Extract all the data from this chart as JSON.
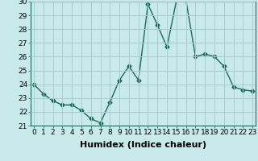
{
  "x": [
    0,
    1,
    2,
    3,
    4,
    5,
    6,
    7,
    8,
    9,
    10,
    11,
    12,
    13,
    14,
    15,
    16,
    17,
    18,
    19,
    20,
    21,
    22,
    23
  ],
  "y": [
    24,
    23.3,
    22.8,
    22.5,
    22.5,
    22.1,
    21.5,
    21.2,
    22.7,
    24.3,
    25.3,
    24.3,
    29.8,
    28.3,
    26.7,
    30.1,
    30.1,
    26.0,
    26.2,
    26.0,
    25.3,
    23.8,
    23.6,
    23.5
  ],
  "xlabel": "Humidex (Indice chaleur)",
  "ylim": [
    21,
    30
  ],
  "yticks": [
    21,
    22,
    23,
    24,
    25,
    26,
    27,
    28,
    29,
    30
  ],
  "xticks": [
    0,
    1,
    2,
    3,
    4,
    5,
    6,
    7,
    8,
    9,
    10,
    11,
    12,
    13,
    14,
    15,
    16,
    17,
    18,
    19,
    20,
    21,
    22,
    23
  ],
  "line_color": "#1a6b5a",
  "marker": "D",
  "marker_size": 2.5,
  "bg_color": "#c8eaea",
  "grid_color": "#a8cccc",
  "xlabel_fontsize": 8,
  "tick_fontsize": 6.5,
  "xlim_left": -0.3,
  "xlim_right": 23.3
}
